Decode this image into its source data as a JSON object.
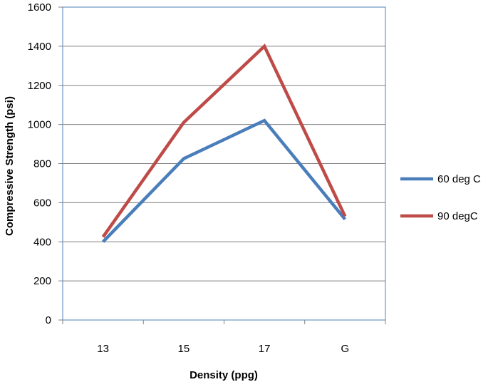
{
  "chart_data": {
    "type": "line",
    "categories": [
      "13",
      "15",
      "17",
      "G"
    ],
    "series": [
      {
        "name": "60 deg C",
        "values": [
          400,
          825,
          1020,
          515
        ],
        "color": "#4a7ebb"
      },
      {
        "name": "90 degC",
        "values": [
          425,
          1010,
          1400,
          530
        ],
        "color": "#be4b48"
      }
    ],
    "xlabel": "Density (ppg)",
    "ylabel": "Compressive Strength (psi)",
    "ylim": [
      0,
      1600
    ],
    "yticks": [
      "0",
      "200",
      "400",
      "600",
      "800",
      "1000",
      "1200",
      "1400",
      "1600"
    ],
    "grid": true,
    "legend_position": "right"
  }
}
